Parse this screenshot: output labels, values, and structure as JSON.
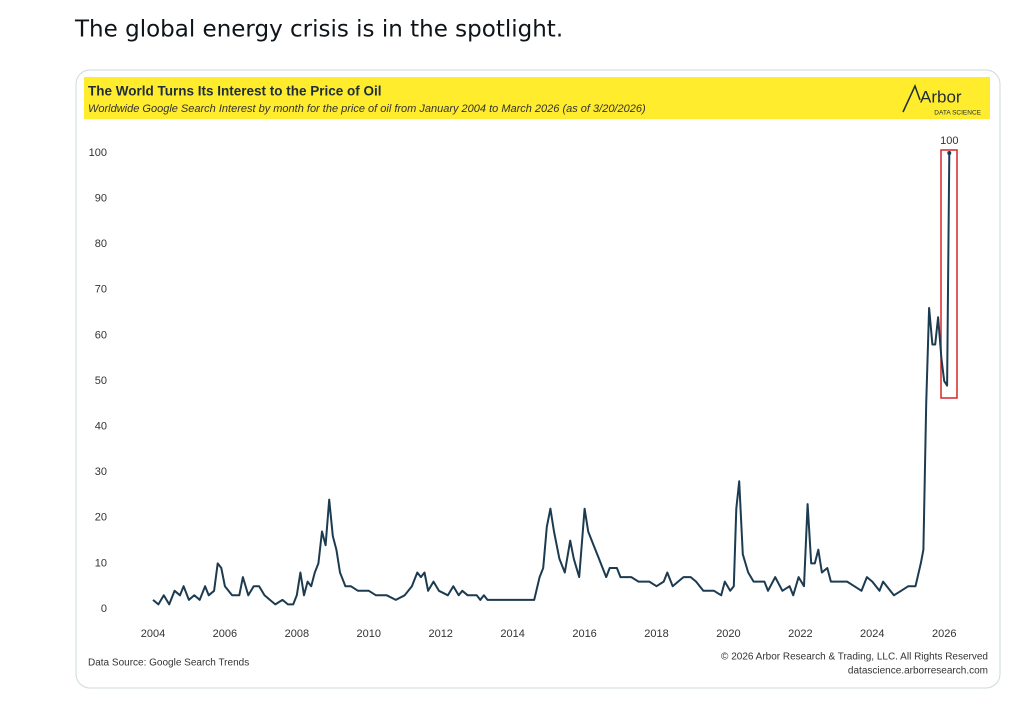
{
  "post_text": "The global energy crisis is in the spotlight.",
  "chart_data": {
    "type": "line",
    "title": "The World Turns Its Interest to the Price of Oil",
    "subtitle": "Worldwide Google Search Interest by month for the price of oil from January 2004 to March 2026 (as of 3/20/2026)",
    "logo": {
      "name": "Arbor",
      "tagline": "DATA SCIENCE"
    },
    "source": "Data Source: Google Search Trends",
    "copyright": "© 2026 Arbor Research & Trading, LLC. All Rights Reserved",
    "website": "datascience.arborresearch.com",
    "color": "#1d3b50",
    "grid": false,
    "x": [
      2004.0,
      2004.15,
      2004.3,
      2004.45,
      2004.6,
      2004.75,
      2004.85,
      2005.0,
      2005.15,
      2005.3,
      2005.45,
      2005.55,
      2005.7,
      2005.8,
      2005.9,
      2006.0,
      2006.2,
      2006.4,
      2006.5,
      2006.65,
      2006.8,
      2006.95,
      2007.1,
      2007.25,
      2007.4,
      2007.6,
      2007.75,
      2007.9,
      2008.0,
      2008.1,
      2008.2,
      2008.3,
      2008.4,
      2008.5,
      2008.6,
      2008.7,
      2008.8,
      2008.9,
      2009.0,
      2009.1,
      2009.2,
      2009.35,
      2009.5,
      2009.7,
      2010.0,
      2010.2,
      2010.5,
      2010.75,
      2011.0,
      2011.2,
      2011.35,
      2011.45,
      2011.55,
      2011.65,
      2011.8,
      2011.95,
      2012.2,
      2012.35,
      2012.5,
      2012.6,
      2012.75,
      2013.0,
      2013.1,
      2013.2,
      2013.3,
      2014.6,
      2014.75,
      2014.85,
      2014.95,
      2015.05,
      2015.15,
      2015.3,
      2015.45,
      2015.6,
      2015.7,
      2015.85,
      2016.0,
      2016.1,
      2016.25,
      2016.4,
      2016.5,
      2016.6,
      2016.7,
      2016.9,
      2017.0,
      2017.3,
      2017.5,
      2017.8,
      2018.0,
      2018.2,
      2018.3,
      2018.45,
      2018.6,
      2018.75,
      2018.95,
      2019.1,
      2019.3,
      2019.6,
      2019.8,
      2019.9,
      2020.05,
      2020.15,
      2020.22,
      2020.3,
      2020.4,
      2020.55,
      2020.7,
      2021.0,
      2021.1,
      2021.3,
      2021.5,
      2021.7,
      2021.8,
      2021.95,
      2022.1,
      2022.2,
      2022.3,
      2022.4,
      2022.5,
      2022.6,
      2022.75,
      2022.85,
      2023.0,
      2023.3,
      2023.5,
      2023.7,
      2023.85,
      2024.0,
      2024.2,
      2024.3,
      2024.5,
      2024.6,
      2024.8,
      2025.0,
      2025.2,
      2025.35,
      2025.42,
      2025.5,
      2025.58,
      2025.67,
      2025.75,
      2025.83,
      2025.92,
      2026.0,
      2026.08,
      2026.14
    ],
    "series": [
      {
        "name": "price of oil",
        "values": [
          2,
          1,
          3,
          1,
          4,
          3,
          5,
          2,
          3,
          2,
          5,
          3,
          4,
          10,
          9,
          5,
          3,
          3,
          7,
          3,
          5,
          5,
          3,
          2,
          1,
          2,
          1,
          1,
          3,
          8,
          3,
          6,
          5,
          8,
          10,
          17,
          14,
          24,
          16,
          13,
          8,
          5,
          5,
          4,
          4,
          3,
          3,
          2,
          3,
          5,
          8,
          7,
          8,
          4,
          6,
          4,
          3,
          5,
          3,
          4,
          3,
          3,
          2,
          3,
          2,
          2,
          7,
          9,
          18,
          22,
          17,
          11,
          8,
          15,
          11,
          7,
          22,
          17,
          14,
          11,
          9,
          7,
          9,
          9,
          7,
          7,
          6,
          6,
          5,
          6,
          8,
          5,
          6,
          7,
          7,
          6,
          4,
          4,
          3,
          6,
          4,
          5,
          22,
          28,
          12,
          8,
          6,
          6,
          4,
          7,
          4,
          5,
          3,
          7,
          5,
          23,
          10,
          10,
          13,
          8,
          9,
          6,
          6,
          6,
          5,
          4,
          7,
          6,
          4,
          6,
          4,
          3,
          4,
          5,
          5,
          10,
          13,
          45,
          66,
          58,
          58,
          64,
          55,
          50,
          49,
          100
        ]
      }
    ],
    "xlim": [
      2003.5,
      2026.8
    ],
    "xticks": [
      2004,
      2006,
      2008,
      2010,
      2012,
      2014,
      2016,
      2018,
      2020,
      2022,
      2024,
      2026
    ],
    "ylim": [
      0,
      100
    ],
    "yticks": [
      0,
      10,
      20,
      30,
      40,
      50,
      60,
      70,
      80,
      90,
      100
    ]
  }
}
